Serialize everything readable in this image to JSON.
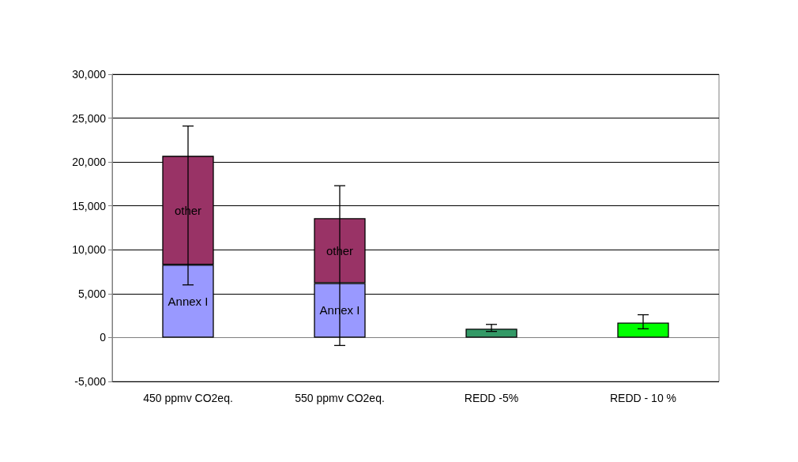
{
  "chart_data": {
    "type": "bar",
    "stacked": true,
    "grid": "y",
    "categories": [
      "450 ppmv CO2eq.",
      "550 ppmv CO2eq.",
      "REDD -5%",
      "REDD - 10 %"
    ],
    "series": [
      {
        "name": "Annex I",
        "color": "#9999ff",
        "values": [
          8300,
          6200,
          null,
          null
        ]
      },
      {
        "name": "other",
        "color": "#993366",
        "values": [
          12400,
          7400,
          null,
          null
        ],
        "errors": [
          [
            6000,
            24100
          ],
          [
            -900,
            17300
          ],
          null,
          null
        ]
      },
      {
        "colors": [
          "#339966",
          "#339966",
          "#339966",
          "#00ff00"
        ],
        "values": [
          null,
          null,
          1000,
          1700
        ],
        "errors": [
          null,
          null,
          [
            700,
            1500
          ],
          [
            1000,
            2600
          ]
        ]
      }
    ],
    "ylim": [
      -5000,
      30000
    ],
    "yticks": [
      {
        "value": -5000,
        "label": "-5,000"
      },
      0,
      {
        "value": 5000,
        "label": "5,000"
      },
      {
        "value": 10000,
        "label": "10,000"
      },
      {
        "value": 15000,
        "label": "15,000"
      },
      {
        "value": 20000,
        "label": "20,000"
      },
      {
        "value": 25000,
        "label": "25,000"
      },
      {
        "value": 30000,
        "label": "30,000"
      }
    ]
  }
}
